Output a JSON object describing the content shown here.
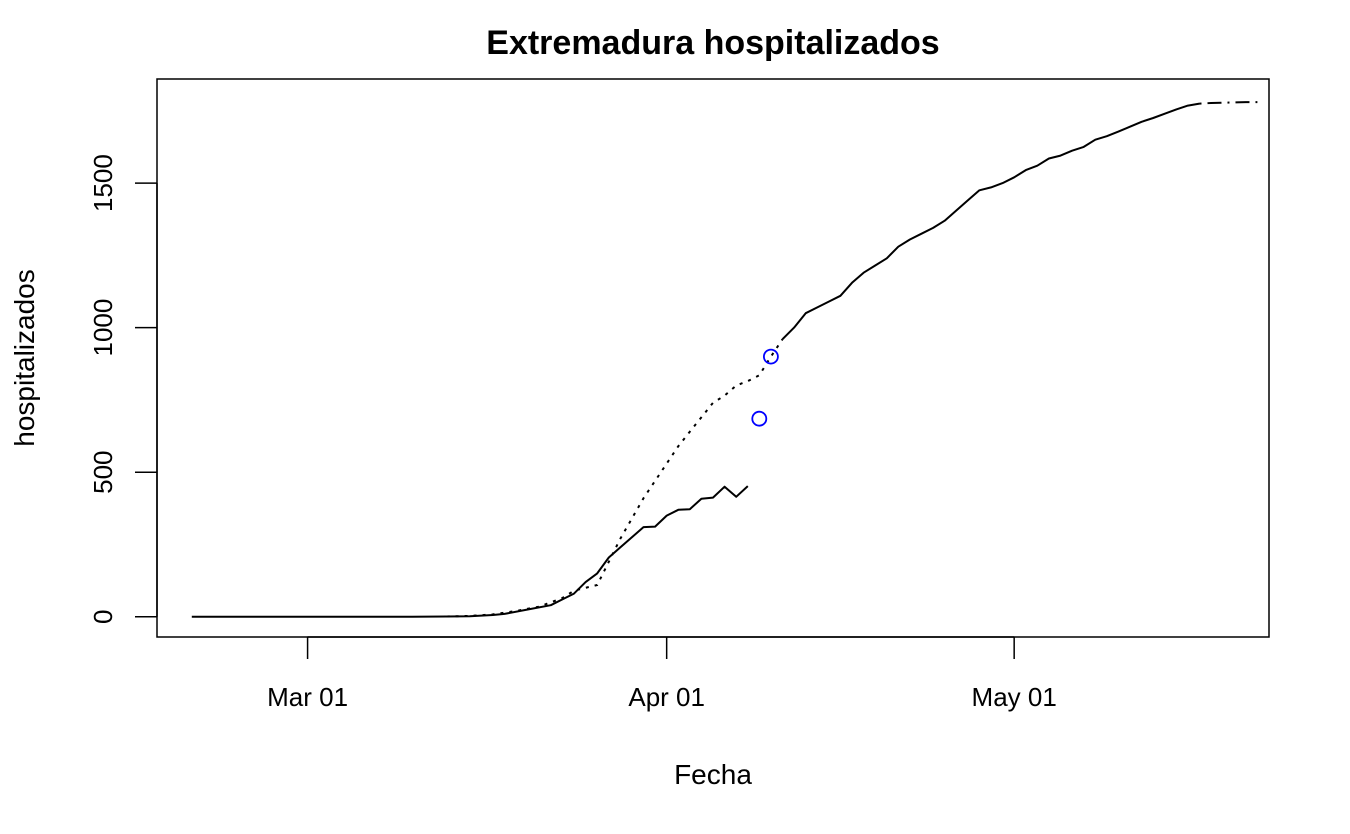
{
  "chart_data": {
    "type": "line",
    "title": "Extremadura hospitalizados",
    "xlabel": "Fecha",
    "ylabel": "hospitalizados",
    "x_axis": "date",
    "xlim": [
      "2020-02-17",
      "2020-05-23"
    ],
    "ylim": [
      -70,
      1860
    ],
    "x_ticks": [
      {
        "date": "2020-03-01",
        "label": "Mar 01"
      },
      {
        "date": "2020-04-01",
        "label": "Apr 01"
      },
      {
        "date": "2020-05-01",
        "label": "May 01"
      }
    ],
    "y_ticks": [
      {
        "value": 0,
        "label": "0"
      },
      {
        "value": 500,
        "label": "500"
      },
      {
        "value": 1000,
        "label": "1000"
      },
      {
        "value": 1500,
        "label": "1500"
      }
    ],
    "grid": false,
    "series": [
      {
        "style": "solid",
        "color": "#000000",
        "points": [
          [
            "2020-02-20",
            0
          ],
          [
            "2020-02-25",
            0
          ],
          [
            "2020-03-01",
            0
          ],
          [
            "2020-03-05",
            0
          ],
          [
            "2020-03-10",
            0
          ],
          [
            "2020-03-13",
            1
          ],
          [
            "2020-03-15",
            2
          ],
          [
            "2020-03-17",
            6
          ],
          [
            "2020-03-18",
            10
          ],
          [
            "2020-03-20",
            25
          ],
          [
            "2020-03-22",
            40
          ],
          [
            "2020-03-23",
            60
          ],
          [
            "2020-03-24",
            80
          ],
          [
            "2020-03-25",
            120
          ],
          [
            "2020-03-26",
            150
          ],
          [
            "2020-03-27",
            205
          ],
          [
            "2020-03-28",
            240
          ],
          [
            "2020-03-29",
            275
          ],
          [
            "2020-03-30",
            310
          ],
          [
            "2020-03-31",
            312
          ],
          [
            "2020-04-01",
            350
          ],
          [
            "2020-04-02",
            370
          ],
          [
            "2020-04-03",
            372
          ],
          [
            "2020-04-04",
            408
          ],
          [
            "2020-04-05",
            412
          ],
          [
            "2020-04-06",
            450
          ],
          [
            "2020-04-07",
            415
          ],
          [
            "2020-04-08",
            452
          ]
        ]
      },
      {
        "style": "dotted",
        "color": "#000000",
        "points": [
          [
            "2020-03-13",
            1
          ],
          [
            "2020-03-15",
            3
          ],
          [
            "2020-03-17",
            8
          ],
          [
            "2020-03-19",
            20
          ],
          [
            "2020-03-21",
            35
          ],
          [
            "2020-03-23",
            65
          ],
          [
            "2020-03-24",
            90
          ],
          [
            "2020-03-25",
            100
          ],
          [
            "2020-03-26",
            110
          ],
          [
            "2020-03-27",
            190
          ],
          [
            "2020-03-28",
            270
          ],
          [
            "2020-03-29",
            340
          ],
          [
            "2020-03-30",
            410
          ],
          [
            "2020-03-31",
            470
          ],
          [
            "2020-04-01",
            530
          ],
          [
            "2020-04-02",
            590
          ],
          [
            "2020-04-03",
            640
          ],
          [
            "2020-04-04",
            690
          ],
          [
            "2020-04-05",
            740
          ],
          [
            "2020-04-06",
            765
          ],
          [
            "2020-04-07",
            800
          ],
          [
            "2020-04-08",
            815
          ],
          [
            "2020-04-09",
            835
          ],
          [
            "2020-04-10",
            900
          ],
          [
            "2020-04-11",
            960
          ]
        ]
      },
      {
        "style": "solid",
        "color": "#000000",
        "points": [
          [
            "2020-04-11",
            960
          ],
          [
            "2020-04-12",
            1000
          ],
          [
            "2020-04-13",
            1050
          ],
          [
            "2020-04-14",
            1070
          ],
          [
            "2020-04-15",
            1090
          ],
          [
            "2020-04-16",
            1110
          ],
          [
            "2020-04-17",
            1155
          ],
          [
            "2020-04-18",
            1190
          ],
          [
            "2020-04-19",
            1215
          ],
          [
            "2020-04-20",
            1240
          ],
          [
            "2020-04-21",
            1280
          ],
          [
            "2020-04-22",
            1305
          ],
          [
            "2020-04-23",
            1325
          ],
          [
            "2020-04-24",
            1345
          ],
          [
            "2020-04-25",
            1370
          ],
          [
            "2020-04-26",
            1405
          ],
          [
            "2020-04-27",
            1440
          ],
          [
            "2020-04-28",
            1475
          ],
          [
            "2020-04-29",
            1485
          ],
          [
            "2020-04-30",
            1500
          ],
          [
            "2020-05-01",
            1520
          ],
          [
            "2020-05-02",
            1545
          ],
          [
            "2020-05-03",
            1560
          ],
          [
            "2020-05-04",
            1585
          ],
          [
            "2020-05-05",
            1595
          ],
          [
            "2020-05-06",
            1612
          ],
          [
            "2020-05-07",
            1625
          ],
          [
            "2020-05-08",
            1650
          ],
          [
            "2020-05-09",
            1662
          ],
          [
            "2020-05-10",
            1678
          ],
          [
            "2020-05-11",
            1695
          ],
          [
            "2020-05-12",
            1712
          ],
          [
            "2020-05-13",
            1725
          ],
          [
            "2020-05-14",
            1740
          ],
          [
            "2020-05-15",
            1755
          ],
          [
            "2020-05-16",
            1768
          ],
          [
            "2020-05-17",
            1775
          ]
        ]
      },
      {
        "style": "dashdot",
        "color": "#000000",
        "points": [
          [
            "2020-05-17",
            1775
          ],
          [
            "2020-05-18",
            1777
          ],
          [
            "2020-05-19",
            1778
          ],
          [
            "2020-05-20",
            1779
          ],
          [
            "2020-05-21",
            1780
          ],
          [
            "2020-05-22",
            1780
          ]
        ]
      },
      {
        "style": "points",
        "color": "#0000ff",
        "points": [
          [
            "2020-04-09",
            685
          ],
          [
            "2020-04-10",
            900
          ]
        ]
      }
    ]
  }
}
